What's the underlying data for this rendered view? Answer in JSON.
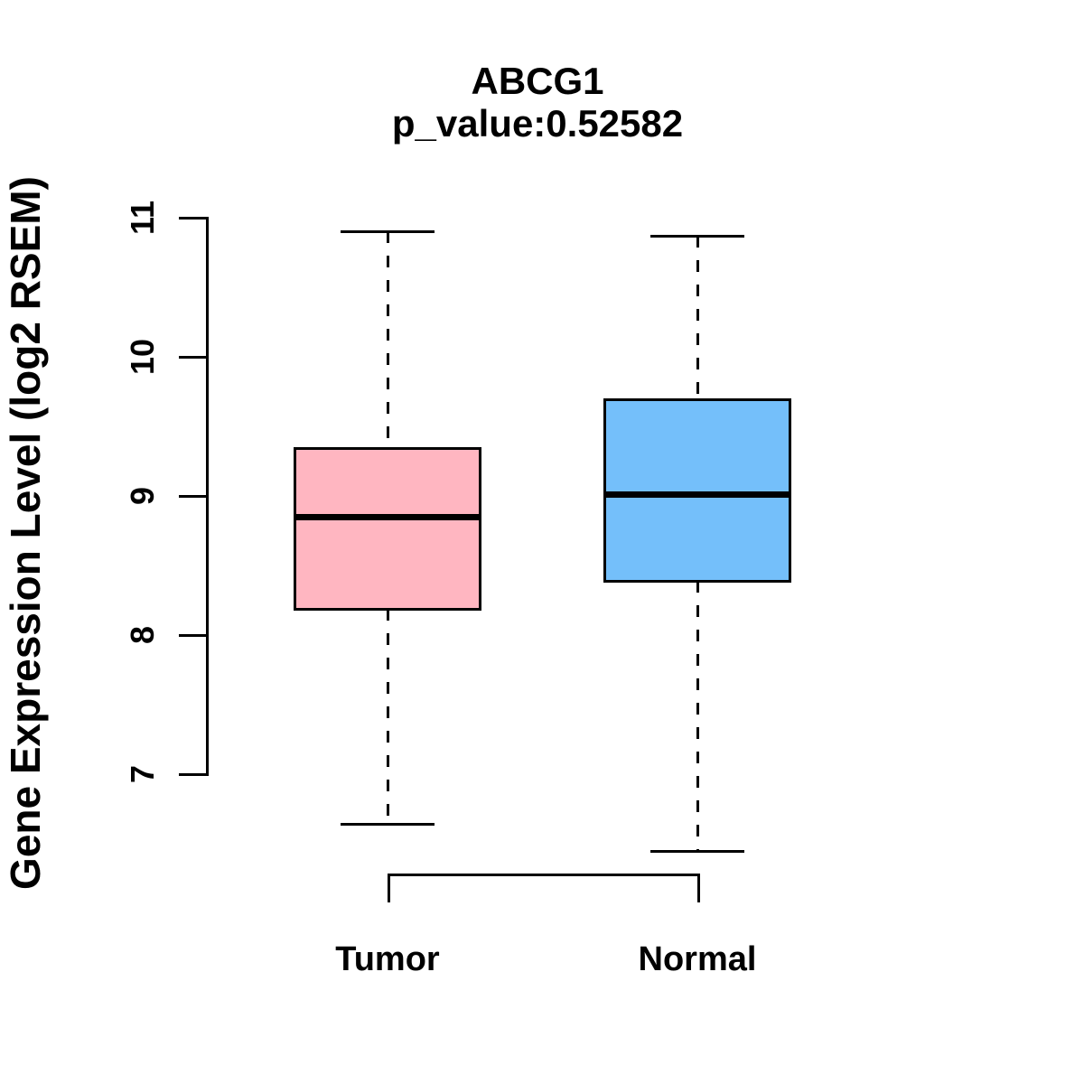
{
  "title": "ABCG1",
  "subtitle": "p_value:0.52582",
  "chart_data": {
    "type": "boxplot",
    "title": "ABCG1",
    "subtitle": "p_value:0.52582",
    "xlabel": "",
    "ylabel": "Gene Expression Level (log2 RSEM)",
    "ylim": [
      6.4,
      11.1
    ],
    "yticks": [
      7,
      8,
      9,
      10,
      11
    ],
    "grid": false,
    "legend": "none",
    "categories": [
      "Tumor",
      "Normal"
    ],
    "series": [
      {
        "name": "Tumor",
        "color": "#FFB6C1",
        "whisker_low": 6.64,
        "q1": 8.19,
        "median": 8.85,
        "q3": 9.34,
        "whisker_high": 10.9
      },
      {
        "name": "Normal",
        "color": "#74BFFA",
        "whisker_low": 6.45,
        "q1": 8.39,
        "median": 9.01,
        "q3": 9.69,
        "whisker_high": 10.87
      }
    ],
    "colors": {
      "stroke": "#000000",
      "background": "#FFFFFF",
      "tumor_fill": "#FFB6C1",
      "normal_fill": "#74BFFA"
    }
  }
}
